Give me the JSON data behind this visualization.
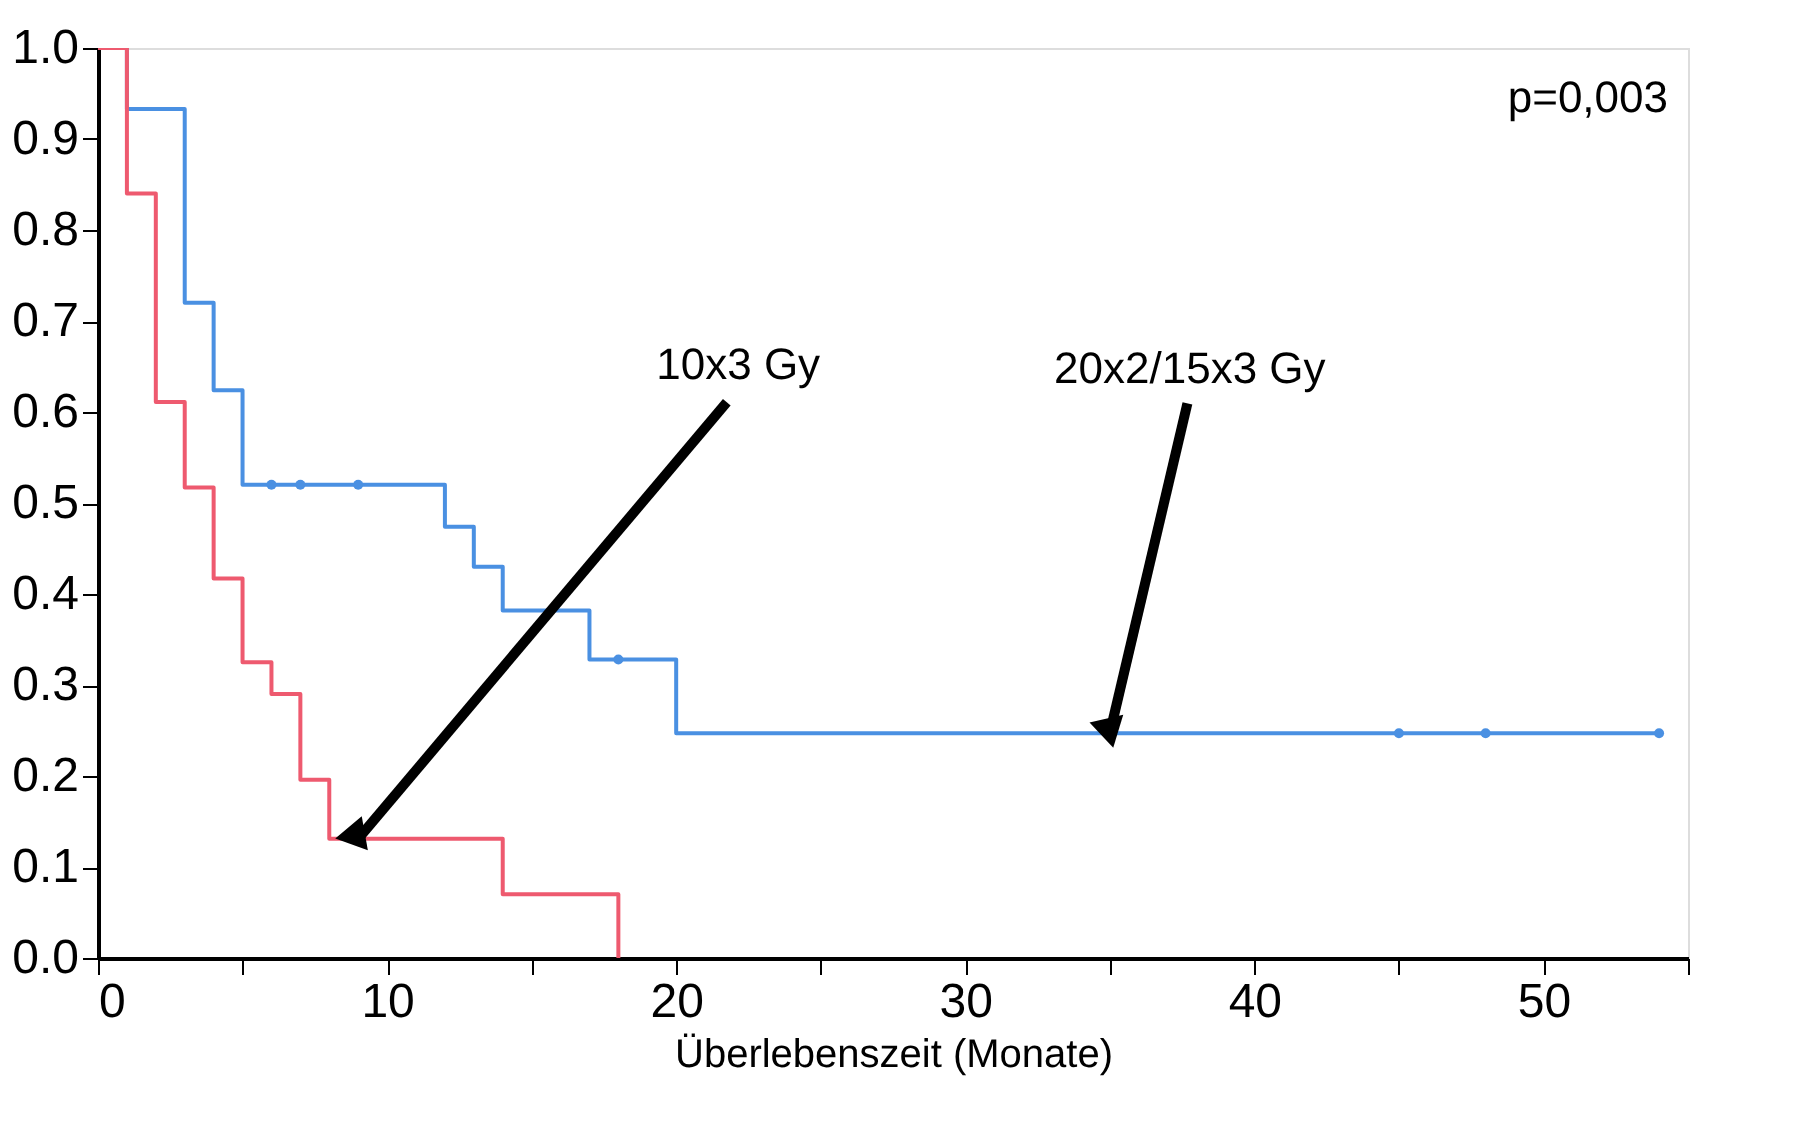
{
  "chart_data": {
    "type": "step",
    "xlabel": "Überlebenszeit (Monate)",
    "xlim": [
      0,
      55
    ],
    "ylim": [
      0,
      1
    ],
    "xticks": [
      0,
      {
        "value": 5,
        "label": null
      },
      10,
      {
        "value": 15,
        "label": null
      },
      20,
      {
        "value": 25,
        "label": null
      },
      30,
      {
        "value": 35,
        "label": null
      },
      40,
      {
        "value": 45,
        "label": null
      },
      50,
      {
        "value": 55,
        "label": null
      }
    ],
    "yticks": [
      {
        "value": 0,
        "label": "0.0"
      },
      {
        "value": 0.1,
        "label": "0.1"
      },
      {
        "value": 0.2,
        "label": "0.2"
      },
      {
        "value": 0.3,
        "label": "0.3"
      },
      {
        "value": 0.4,
        "label": "0.4"
      },
      {
        "value": 0.5,
        "label": "0.5"
      },
      {
        "value": 0.6,
        "label": "0.6"
      },
      {
        "value": 0.7,
        "label": "0.7"
      },
      {
        "value": 0.8,
        "label": "0.8"
      },
      {
        "value": 0.9,
        "label": "0.9"
      },
      {
        "value": 1,
        "label": "1.0"
      }
    ],
    "series": [
      {
        "color": "#4a90e2",
        "x": [
          0,
          1,
          3,
          4,
          5,
          12,
          13,
          14,
          17,
          20,
          54
        ],
        "values": [
          1.0,
          0.933,
          0.72,
          0.624,
          0.52,
          0.474,
          0.43,
          0.382,
          0.328,
          0.247,
          0.247
        ]
      },
      {
        "color": "#ee5a6f",
        "x": [
          0,
          1,
          2,
          3,
          4,
          5,
          6,
          7,
          8,
          14,
          18
        ],
        "values": [
          1.0,
          0.84,
          0.611,
          0.517,
          0.417,
          0.325,
          0.29,
          0.196,
          0.131,
          0.07,
          0
        ]
      },
      {
        "type": "scatter",
        "color": "#4a90e2",
        "marker": "circle",
        "x": [
          6,
          7,
          9,
          18,
          45,
          48,
          54
        ],
        "values": [
          0.52,
          0.52,
          0.52,
          0.328,
          0.247,
          0.247,
          0.247
        ]
      }
    ],
    "annotations": [
      "p=0,003",
      {
        "text": "10x3 Gy",
        "x": 9,
        "y": 0.131
      },
      {
        "text": "20x2/15x3 Gy",
        "x": 35,
        "y": 0.247
      }
    ]
  }
}
